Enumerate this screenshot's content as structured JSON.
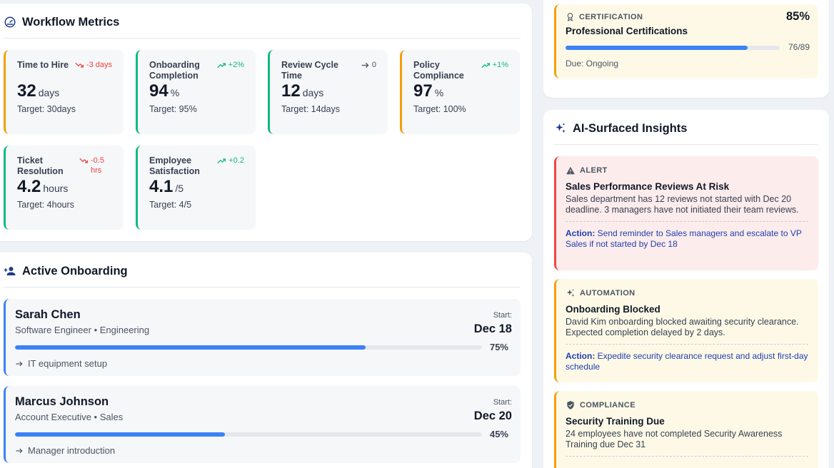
{
  "metrics": {
    "title": "Workflow Metrics",
    "icon": "gauge-icon",
    "cards": [
      {
        "label": "Time to Hire",
        "trend": "-3 days",
        "direction": "down",
        "value": "32",
        "unit": "days",
        "target": "Target: 30days",
        "accent": "#f59e0b"
      },
      {
        "label": "Onboarding Completion",
        "trend": "+2%",
        "direction": "up",
        "value": "94",
        "unit": "%",
        "target": "Target: 95%",
        "accent": "#10b981"
      },
      {
        "label": "Review Cycle Time",
        "trend": "0",
        "direction": "flat",
        "value": "12",
        "unit": "days",
        "target": "Target: 14days",
        "accent": "#10b981"
      },
      {
        "label": "Policy Compliance",
        "trend": "+1%",
        "direction": "up",
        "value": "97",
        "unit": "%",
        "target": "Target: 100%",
        "accent": "#f59e0b"
      },
      {
        "label": "Ticket Resolution",
        "trend": "-0.5 hrs",
        "direction": "down",
        "value": "4.2",
        "unit": "hours",
        "target": "Target: 4hours",
        "accent": "#10b981"
      },
      {
        "label": "Employee Satisfaction",
        "trend": "+0.2",
        "direction": "up",
        "value": "4.1",
        "unit": "/5",
        "target": "Target: 4/5",
        "accent": "#10b981"
      }
    ]
  },
  "onboarding": {
    "title": "Active Onboarding",
    "icon": "person-add-icon",
    "start_label": "Start:",
    "people": [
      {
        "name": "Sarah Chen",
        "role": "Software Engineer • Engineering",
        "start": "Dec 18",
        "progress": 75,
        "progress_label": "75%",
        "step": "IT equipment setup"
      },
      {
        "name": "Marcus Johnson",
        "role": "Account Executive • Sales",
        "start": "Dec 20",
        "progress": 45,
        "progress_label": "45%",
        "step": "Manager introduction"
      }
    ]
  },
  "certification": {
    "tag": "CERTIFICATION",
    "icon": "award-icon",
    "title": "Professional Certifications",
    "percent": "85%",
    "progress": 85,
    "count": "76/89",
    "due": "Due: Ongoing"
  },
  "insights": {
    "title": "AI-Surfaced Insights",
    "icon": "sparkles-icon",
    "items": [
      {
        "type": "alert",
        "tag": "ALERT",
        "icon": "warning-icon",
        "title": "Sales Performance Reviews At Risk",
        "desc": "Sales department has 12 reviews not started with Dec 20 deadline. 3 managers have not initiated their team reviews.",
        "action_label": "Action:",
        "action": "Send reminder to Sales managers and escalate to VP Sales if not started by Dec 18"
      },
      {
        "type": "automation",
        "tag": "AUTOMATION",
        "icon": "sparkles-icon",
        "title": "Onboarding Blocked",
        "desc": "David Kim onboarding blocked awaiting security clearance. Expected completion delayed by 2 days.",
        "action_label": "Action:",
        "action": "Expedite security clearance request and adjust first-day schedule"
      },
      {
        "type": "compliance",
        "tag": "COMPLIANCE",
        "icon": "shield-check-icon",
        "title": "Security Training Due",
        "desc": "24 employees have not completed Security Awareness Training due Dec 31",
        "action_label": "",
        "action": ""
      }
    ]
  }
}
